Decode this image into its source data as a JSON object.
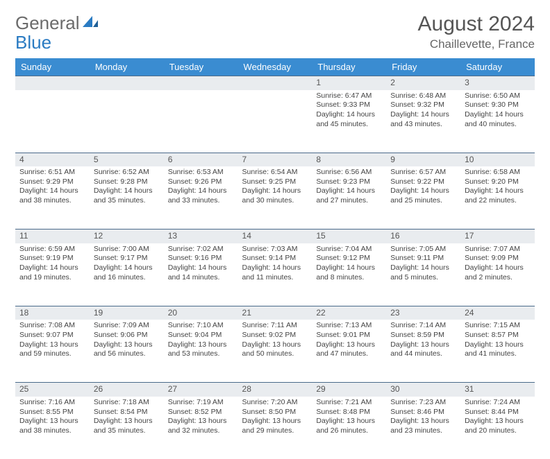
{
  "logo": {
    "part1": "General",
    "part2": "Blue"
  },
  "title": "August 2024",
  "location": "Chaillevette, France",
  "colors": {
    "header_bg": "#3a8cd1",
    "header_text": "#ffffff",
    "daynum_bg": "#e9ecef",
    "daynum_border": "#4a6a8a",
    "logo_gray": "#6b6b6b",
    "logo_blue": "#2a7bc2"
  },
  "weekdays": [
    "Sunday",
    "Monday",
    "Tuesday",
    "Wednesday",
    "Thursday",
    "Friday",
    "Saturday"
  ],
  "weeks": [
    [
      null,
      null,
      null,
      null,
      {
        "d": "1",
        "sr": "Sunrise: 6:47 AM",
        "ss": "Sunset: 9:33 PM",
        "dl": "Daylight: 14 hours and 45 minutes."
      },
      {
        "d": "2",
        "sr": "Sunrise: 6:48 AM",
        "ss": "Sunset: 9:32 PM",
        "dl": "Daylight: 14 hours and 43 minutes."
      },
      {
        "d": "3",
        "sr": "Sunrise: 6:50 AM",
        "ss": "Sunset: 9:30 PM",
        "dl": "Daylight: 14 hours and 40 minutes."
      }
    ],
    [
      {
        "d": "4",
        "sr": "Sunrise: 6:51 AM",
        "ss": "Sunset: 9:29 PM",
        "dl": "Daylight: 14 hours and 38 minutes."
      },
      {
        "d": "5",
        "sr": "Sunrise: 6:52 AM",
        "ss": "Sunset: 9:28 PM",
        "dl": "Daylight: 14 hours and 35 minutes."
      },
      {
        "d": "6",
        "sr": "Sunrise: 6:53 AM",
        "ss": "Sunset: 9:26 PM",
        "dl": "Daylight: 14 hours and 33 minutes."
      },
      {
        "d": "7",
        "sr": "Sunrise: 6:54 AM",
        "ss": "Sunset: 9:25 PM",
        "dl": "Daylight: 14 hours and 30 minutes."
      },
      {
        "d": "8",
        "sr": "Sunrise: 6:56 AM",
        "ss": "Sunset: 9:23 PM",
        "dl": "Daylight: 14 hours and 27 minutes."
      },
      {
        "d": "9",
        "sr": "Sunrise: 6:57 AM",
        "ss": "Sunset: 9:22 PM",
        "dl": "Daylight: 14 hours and 25 minutes."
      },
      {
        "d": "10",
        "sr": "Sunrise: 6:58 AM",
        "ss": "Sunset: 9:20 PM",
        "dl": "Daylight: 14 hours and 22 minutes."
      }
    ],
    [
      {
        "d": "11",
        "sr": "Sunrise: 6:59 AM",
        "ss": "Sunset: 9:19 PM",
        "dl": "Daylight: 14 hours and 19 minutes."
      },
      {
        "d": "12",
        "sr": "Sunrise: 7:00 AM",
        "ss": "Sunset: 9:17 PM",
        "dl": "Daylight: 14 hours and 16 minutes."
      },
      {
        "d": "13",
        "sr": "Sunrise: 7:02 AM",
        "ss": "Sunset: 9:16 PM",
        "dl": "Daylight: 14 hours and 14 minutes."
      },
      {
        "d": "14",
        "sr": "Sunrise: 7:03 AM",
        "ss": "Sunset: 9:14 PM",
        "dl": "Daylight: 14 hours and 11 minutes."
      },
      {
        "d": "15",
        "sr": "Sunrise: 7:04 AM",
        "ss": "Sunset: 9:12 PM",
        "dl": "Daylight: 14 hours and 8 minutes."
      },
      {
        "d": "16",
        "sr": "Sunrise: 7:05 AM",
        "ss": "Sunset: 9:11 PM",
        "dl": "Daylight: 14 hours and 5 minutes."
      },
      {
        "d": "17",
        "sr": "Sunrise: 7:07 AM",
        "ss": "Sunset: 9:09 PM",
        "dl": "Daylight: 14 hours and 2 minutes."
      }
    ],
    [
      {
        "d": "18",
        "sr": "Sunrise: 7:08 AM",
        "ss": "Sunset: 9:07 PM",
        "dl": "Daylight: 13 hours and 59 minutes."
      },
      {
        "d": "19",
        "sr": "Sunrise: 7:09 AM",
        "ss": "Sunset: 9:06 PM",
        "dl": "Daylight: 13 hours and 56 minutes."
      },
      {
        "d": "20",
        "sr": "Sunrise: 7:10 AM",
        "ss": "Sunset: 9:04 PM",
        "dl": "Daylight: 13 hours and 53 minutes."
      },
      {
        "d": "21",
        "sr": "Sunrise: 7:11 AM",
        "ss": "Sunset: 9:02 PM",
        "dl": "Daylight: 13 hours and 50 minutes."
      },
      {
        "d": "22",
        "sr": "Sunrise: 7:13 AM",
        "ss": "Sunset: 9:01 PM",
        "dl": "Daylight: 13 hours and 47 minutes."
      },
      {
        "d": "23",
        "sr": "Sunrise: 7:14 AM",
        "ss": "Sunset: 8:59 PM",
        "dl": "Daylight: 13 hours and 44 minutes."
      },
      {
        "d": "24",
        "sr": "Sunrise: 7:15 AM",
        "ss": "Sunset: 8:57 PM",
        "dl": "Daylight: 13 hours and 41 minutes."
      }
    ],
    [
      {
        "d": "25",
        "sr": "Sunrise: 7:16 AM",
        "ss": "Sunset: 8:55 PM",
        "dl": "Daylight: 13 hours and 38 minutes."
      },
      {
        "d": "26",
        "sr": "Sunrise: 7:18 AM",
        "ss": "Sunset: 8:54 PM",
        "dl": "Daylight: 13 hours and 35 minutes."
      },
      {
        "d": "27",
        "sr": "Sunrise: 7:19 AM",
        "ss": "Sunset: 8:52 PM",
        "dl": "Daylight: 13 hours and 32 minutes."
      },
      {
        "d": "28",
        "sr": "Sunrise: 7:20 AM",
        "ss": "Sunset: 8:50 PM",
        "dl": "Daylight: 13 hours and 29 minutes."
      },
      {
        "d": "29",
        "sr": "Sunrise: 7:21 AM",
        "ss": "Sunset: 8:48 PM",
        "dl": "Daylight: 13 hours and 26 minutes."
      },
      {
        "d": "30",
        "sr": "Sunrise: 7:23 AM",
        "ss": "Sunset: 8:46 PM",
        "dl": "Daylight: 13 hours and 23 minutes."
      },
      {
        "d": "31",
        "sr": "Sunrise: 7:24 AM",
        "ss": "Sunset: 8:44 PM",
        "dl": "Daylight: 13 hours and 20 minutes."
      }
    ]
  ]
}
